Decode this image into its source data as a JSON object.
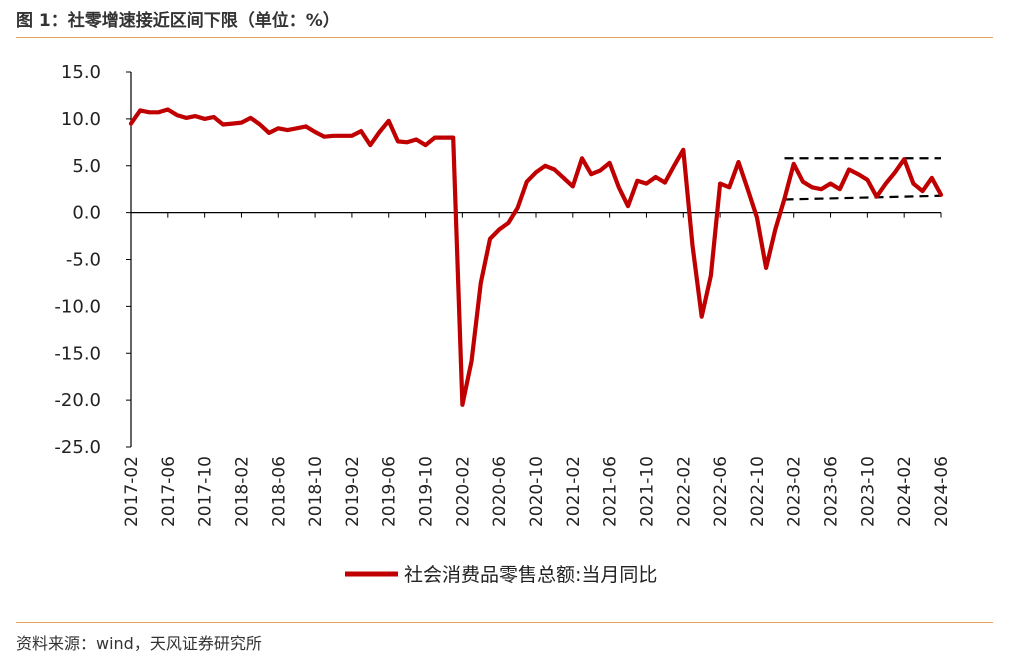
{
  "figure": {
    "title": "图 1：社零增速接近区间下限（单位：%）",
    "source": "资料来源：wind，天风证券研究所"
  },
  "chart_data": {
    "type": "line",
    "xtick_labels": [
      "2017-02",
      "2017-06",
      "2017-10",
      "2018-02",
      "2018-06",
      "2018-10",
      "2019-02",
      "2019-06",
      "2019-10",
      "2020-02",
      "2020-06",
      "2020-10",
      "2021-02",
      "2021-06",
      "2021-10",
      "2022-02",
      "2022-06",
      "2022-10",
      "2023-02",
      "2023-06",
      "2023-10",
      "2024-02",
      "2024-06"
    ],
    "ytick_labels": [
      "15.0",
      "10.0",
      "5.0",
      "0.0",
      "-5.0",
      "-10.0",
      "-15.0",
      "-20.0",
      "-25.0"
    ],
    "ylim": [
      -25,
      15
    ],
    "grid": false,
    "legend_position": "bottom-center",
    "series": [
      {
        "name": "社会消费品零售总额:当月同比",
        "color": "#c00000",
        "x": [
          "2017-02",
          "2017-03",
          "2017-04",
          "2017-05",
          "2017-06",
          "2017-07",
          "2017-08",
          "2017-09",
          "2017-10",
          "2017-11",
          "2017-12",
          "2018-01",
          "2018-02",
          "2018-03",
          "2018-04",
          "2018-05",
          "2018-06",
          "2018-07",
          "2018-08",
          "2018-09",
          "2018-10",
          "2018-11",
          "2018-12",
          "2019-01",
          "2019-02",
          "2019-03",
          "2019-04",
          "2019-05",
          "2019-06",
          "2019-07",
          "2019-08",
          "2019-09",
          "2019-10",
          "2019-11",
          "2019-12",
          "2020-01",
          "2020-02",
          "2020-03",
          "2020-04",
          "2020-05",
          "2020-06",
          "2020-07",
          "2020-08",
          "2020-09",
          "2020-10",
          "2020-11",
          "2020-12",
          "2021-01",
          "2021-02",
          "2021-03",
          "2021-04",
          "2021-05",
          "2021-06",
          "2021-07",
          "2021-08",
          "2021-09",
          "2021-10",
          "2021-11",
          "2021-12",
          "2022-01",
          "2022-02",
          "2022-03",
          "2022-04",
          "2022-05",
          "2022-06",
          "2022-07",
          "2022-08",
          "2022-09",
          "2022-10",
          "2022-11",
          "2022-12",
          "2023-01",
          "2023-02",
          "2023-03",
          "2023-04",
          "2023-05",
          "2023-06",
          "2023-07",
          "2023-08",
          "2023-09",
          "2023-10",
          "2023-11",
          "2023-12",
          "2024-01",
          "2024-02",
          "2024-03",
          "2024-04",
          "2024-05",
          "2024-06"
        ],
        "values": [
          9.5,
          10.9,
          10.7,
          10.7,
          11.0,
          10.4,
          10.1,
          10.3,
          10.0,
          10.2,
          9.4,
          9.5,
          9.6,
          10.1,
          9.4,
          8.5,
          9.0,
          8.8,
          9.0,
          9.2,
          8.6,
          8.1,
          8.2,
          8.2,
          8.2,
          8.7,
          7.2,
          8.6,
          9.8,
          7.6,
          7.5,
          7.8,
          7.2,
          8.0,
          8.0,
          8.0,
          -20.5,
          -15.8,
          -7.5,
          -2.8,
          -1.8,
          -1.1,
          0.5,
          3.3,
          4.3,
          5.0,
          4.6,
          3.7,
          2.8,
          5.8,
          4.1,
          4.5,
          5.3,
          2.7,
          0.7,
          3.4,
          3.1,
          3.8,
          3.2,
          5.0,
          6.7,
          -3.5,
          -11.1,
          -6.7,
          3.1,
          2.7,
          5.4,
          2.5,
          -0.5,
          -5.9,
          -1.8,
          1.5,
          5.2,
          3.3,
          2.7,
          2.5,
          3.1,
          2.5,
          4.6,
          4.1,
          3.5,
          1.7,
          3.1,
          4.3,
          5.7,
          3.1,
          2.3,
          3.7,
          1.9
        ]
      }
    ],
    "reference_lines": [
      {
        "style": "dashed",
        "color": "#000000",
        "x_from": "2023-01",
        "x_to": "2024-06",
        "y_from": 5.8,
        "y_to": 5.8
      },
      {
        "style": "dashed",
        "color": "#000000",
        "x_from": "2023-01",
        "x_to": "2024-06",
        "y_from": 1.4,
        "y_to": 1.8
      }
    ]
  }
}
